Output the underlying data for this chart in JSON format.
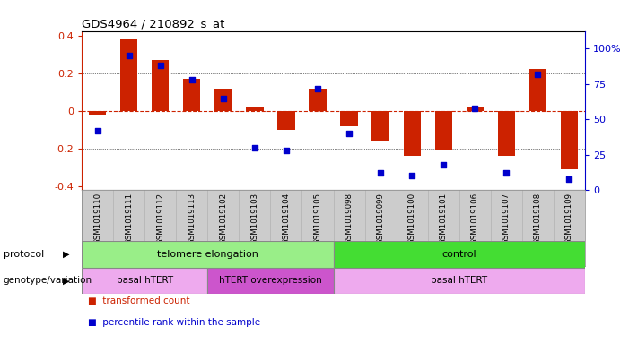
{
  "title": "GDS4964 / 210892_s_at",
  "samples": [
    "GSM1019110",
    "GSM1019111",
    "GSM1019112",
    "GSM1019113",
    "GSM1019102",
    "GSM1019103",
    "GSM1019104",
    "GSM1019105",
    "GSM1019098",
    "GSM1019099",
    "GSM1019100",
    "GSM1019101",
    "GSM1019106",
    "GSM1019107",
    "GSM1019108",
    "GSM1019109"
  ],
  "bar_values": [
    -0.02,
    0.38,
    0.27,
    0.17,
    0.12,
    0.02,
    -0.1,
    0.12,
    -0.08,
    -0.16,
    -0.24,
    -0.21,
    0.02,
    -0.24,
    0.22,
    -0.31
  ],
  "dot_values": [
    42,
    95,
    88,
    78,
    65,
    30,
    28,
    72,
    40,
    12,
    10,
    18,
    58,
    12,
    82,
    8
  ],
  "bar_color": "#cc2200",
  "dot_color": "#0000cc",
  "zero_line_color": "#cc2200",
  "ylim": [
    -0.42,
    0.42
  ],
  "y2lim": [
    0,
    112
  ],
  "yticks": [
    -0.4,
    -0.2,
    0.0,
    0.2,
    0.4
  ],
  "y2ticks": [
    0,
    25,
    50,
    75,
    100
  ],
  "y2ticklabels": [
    "0",
    "25",
    "50",
    "75",
    "100%"
  ],
  "protocol_groups": [
    {
      "text": "telomere elongation",
      "start": 0,
      "end": 8,
      "color": "#99ee88"
    },
    {
      "text": "control",
      "start": 8,
      "end": 16,
      "color": "#44dd33"
    }
  ],
  "genotype_groups": [
    {
      "text": "basal hTERT",
      "start": 0,
      "end": 4,
      "color": "#eeaaee"
    },
    {
      "text": "hTERT overexpression",
      "start": 4,
      "end": 8,
      "color": "#cc55cc"
    },
    {
      "text": "basal hTERT",
      "start": 8,
      "end": 16,
      "color": "#eeaaee"
    }
  ],
  "protocol_row_label": "protocol",
  "genotype_row_label": "genotype/variation",
  "legend1_label": "transformed count",
  "legend2_label": "percentile rank within the sample",
  "bar_width": 0.55,
  "tick_area_color": "#cccccc",
  "bg_color": "#ffffff"
}
